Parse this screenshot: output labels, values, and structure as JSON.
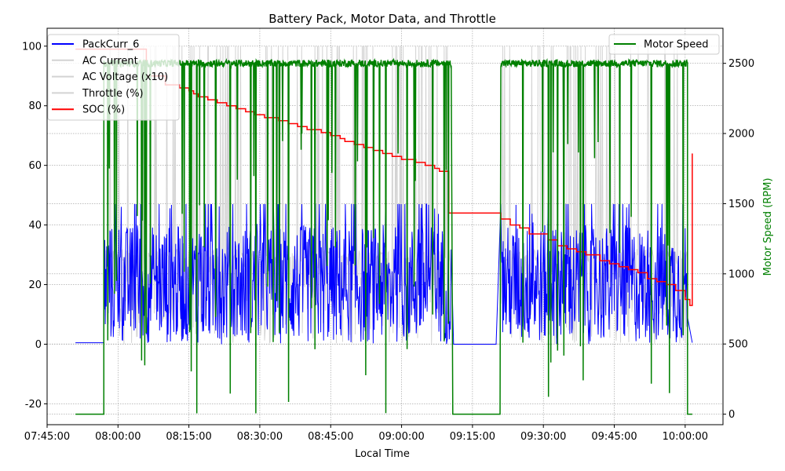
{
  "chart_data": {
    "type": "line",
    "title": "Battery Pack, Motor Data, and Throttle",
    "xlabel": "Local Time",
    "ylabel_left": "",
    "ylabel_right": "Motor Speed (RPM)",
    "xlim": [
      "07:45:00",
      "10:08:00"
    ],
    "ylim_left": [
      -27,
      106
    ],
    "ylim_right": [
      -75,
      2750
    ],
    "x_ticks": [
      "07:45:00",
      "08:00:00",
      "08:15:00",
      "08:30:00",
      "08:45:00",
      "09:00:00",
      "09:15:00",
      "09:30:00",
      "09:45:00",
      "10:00:00"
    ],
    "y_ticks_left": [
      -20,
      0,
      20,
      40,
      60,
      80,
      100
    ],
    "y_ticks_right": [
      0,
      500,
      1000,
      1500,
      2000,
      2500
    ],
    "grid": true,
    "legend_left": {
      "placement": "upper-left",
      "entries": [
        {
          "name": "PackCurr_6",
          "color": "#0000ff"
        },
        {
          "name": "AC Current",
          "color": "#d3d3d3"
        },
        {
          "name": "AC Voltage (x10)",
          "color": "#d3d3d3"
        },
        {
          "name": "Throttle (%)",
          "color": "#d3d3d3"
        },
        {
          "name": "SOC (%)",
          "color": "#ff0000"
        }
      ]
    },
    "legend_right": {
      "placement": "upper-right",
      "entries": [
        {
          "name": "Motor Speed",
          "color": "#008000"
        }
      ]
    },
    "series": [
      {
        "name": "SOC (%)",
        "axis": "left",
        "color": "#ff0000",
        "style": "step",
        "x": [
          "07:51:00",
          "08:06:00",
          "08:10:00",
          "08:13:00",
          "08:15:00",
          "08:16:00",
          "08:17:00",
          "08:19:00",
          "08:21:00",
          "08:23:00",
          "08:25:00",
          "08:27:00",
          "08:29:00",
          "08:31:00",
          "08:34:00",
          "08:36:00",
          "08:38:00",
          "08:40:00",
          "08:43:00",
          "08:45:00",
          "08:47:00",
          "08:48:00",
          "08:50:00",
          "08:52:00",
          "08:54:00",
          "08:56:00",
          "08:58:00",
          "09:00:00",
          "09:03:00",
          "09:05:00",
          "09:07:00",
          "09:08:00",
          "09:10:00",
          "09:21:00",
          "09:23:00",
          "09:25:00",
          "09:27:00",
          "09:31:00",
          "09:33:00",
          "09:35:00",
          "09:37:00",
          "09:39:00",
          "09:42:00",
          "09:44:00",
          "09:46:00",
          "09:48:00",
          "09:50:00",
          "09:52:00",
          "09:54:00",
          "09:56:00",
          "09:58:00",
          "10:00:00",
          "10:01:00",
          "10:01:30"
        ],
        "y": [
          99,
          90,
          87,
          86,
          85,
          84,
          83,
          82,
          81,
          80,
          79,
          78,
          77,
          76,
          75,
          74,
          73,
          72,
          71,
          70,
          69,
          68,
          67,
          66,
          65,
          64,
          63,
          62,
          61,
          60,
          59,
          58,
          44,
          42,
          40,
          39,
          37,
          35,
          33,
          32,
          31,
          30,
          28,
          27,
          26,
          25,
          24,
          22,
          21,
          20,
          18,
          15,
          13,
          64
        ]
      },
      {
        "name": "Motor Speed",
        "axis": "right",
        "color": "#008000",
        "style": "approx",
        "x": [
          "07:51:00",
          "07:57:00",
          "07:58:00",
          "08:00:00",
          "08:13:00",
          "08:15:00",
          "08:16:00",
          "08:20:00",
          "08:30:00",
          "08:40:00",
          "08:50:00",
          "09:00:00",
          "09:10:00",
          "09:11:00",
          "09:20:00",
          "09:21:00",
          "09:30:00",
          "09:40:00",
          "09:50:00",
          "10:00:00",
          "10:00:30",
          "10:01:30"
        ],
        "y": [
          0,
          0,
          2500,
          2500,
          2500,
          2050,
          2500,
          2500,
          2500,
          2500,
          2500,
          2500,
          2500,
          0,
          0,
          2500,
          2500,
          2500,
          2500,
          2500,
          0,
          0
        ]
      },
      {
        "name": "PackCurr_6",
        "axis": "left",
        "color": "#0000ff",
        "style": "approx",
        "x": [
          "07:51:00",
          "07:57:00",
          "07:58:00",
          "08:05:00",
          "08:15:00",
          "08:25:00",
          "08:35:00",
          "08:45:00",
          "08:55:00",
          "09:05:00",
          "09:10:00",
          "09:11:00",
          "09:20:00",
          "09:21:00",
          "09:30:00",
          "09:40:00",
          "09:50:00",
          "10:00:00",
          "10:01:30"
        ],
        "y": [
          0.5,
          0.5,
          20,
          25,
          20,
          22,
          20,
          20,
          20,
          22,
          20,
          0,
          0,
          20,
          18,
          20,
          20,
          22,
          0.5
        ]
      }
    ]
  }
}
